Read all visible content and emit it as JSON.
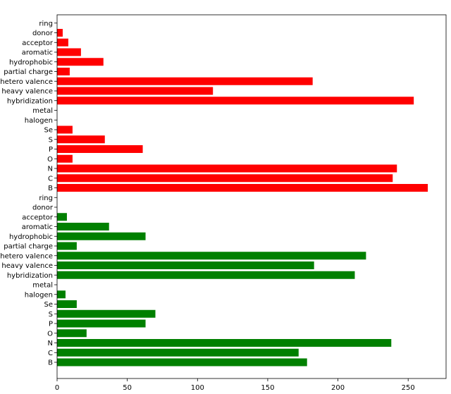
{
  "chart_data": {
    "type": "bar",
    "orientation": "horizontal",
    "xlim": [
      0,
      277
    ],
    "x_ticks": [
      0,
      50,
      100,
      150,
      200,
      250
    ],
    "x_tick_labels": [
      "0",
      "50",
      "100",
      "150",
      "200",
      "250"
    ],
    "grid": false,
    "legend": "none",
    "groups": [
      {
        "color": "#ff0000",
        "categories": [
          "B",
          "C",
          "N",
          "O",
          "P",
          "S",
          "Se",
          "halogen",
          "metal",
          "hybridization",
          "heavy valence",
          "hetero valence",
          "partial charge",
          "hydrophobic",
          "aromatic",
          "acceptor",
          "donor",
          "ring"
        ],
        "values": [
          264,
          239,
          242,
          11,
          61,
          34,
          11,
          0,
          0,
          254,
          111,
          182,
          9,
          33,
          17,
          8,
          4,
          0
        ]
      },
      {
        "color": "#008000",
        "categories": [
          "B",
          "C",
          "N",
          "O",
          "P",
          "S",
          "Se",
          "halogen",
          "metal",
          "hybridization",
          "heavy valence",
          "hetero valence",
          "partial charge",
          "hydrophobic",
          "aromatic",
          "acceptor",
          "donor",
          "ring"
        ],
        "values": [
          178,
          172,
          238,
          21,
          63,
          70,
          14,
          6,
          0,
          212,
          183,
          220,
          14,
          63,
          37,
          7,
          0,
          0
        ]
      }
    ]
  }
}
